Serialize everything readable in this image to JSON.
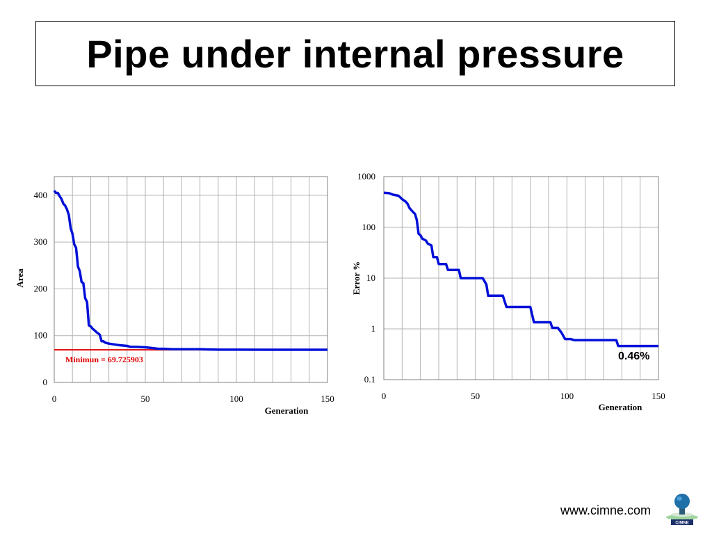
{
  "slide": {
    "title": "Pipe under internal pressure",
    "footer_url": "www.cimne.com",
    "logo_text": "CIMNE"
  },
  "colors": {
    "series": "#0010d8",
    "minimum_line": "#e00000",
    "grid": "#b3b3b3"
  },
  "chart_data": [
    {
      "type": "line",
      "xlabel": "Generation",
      "ylabel": "Area",
      "xlim": [
        0,
        150
      ],
      "ylim": [
        0,
        440
      ],
      "xticks": [
        0,
        50,
        100,
        150
      ],
      "yticks": [
        0,
        100,
        200,
        300,
        400
      ],
      "x_gridlines": [
        10,
        20,
        30,
        40,
        50,
        60,
        70,
        80,
        90,
        100,
        110,
        120,
        130,
        140
      ],
      "y_gridlines": [
        0,
        100,
        200,
        300,
        400
      ],
      "series": [
        {
          "x": [
            0,
            1,
            2,
            3,
            4,
            5,
            6,
            7,
            8,
            9,
            10,
            11,
            12,
            13,
            14,
            15,
            16,
            17,
            18,
            19,
            20,
            21,
            22,
            23,
            24,
            25,
            26,
            27,
            28,
            30,
            35,
            40,
            42,
            45,
            50,
            55,
            57,
            60,
            65,
            70,
            80,
            85,
            90,
            100,
            120,
            150
          ],
          "y": [
            410,
            405,
            405,
            398,
            392,
            382,
            378,
            370,
            358,
            330,
            318,
            295,
            288,
            248,
            238,
            215,
            212,
            180,
            172,
            122,
            120,
            115,
            112,
            108,
            105,
            102,
            88,
            88,
            85,
            83,
            80,
            78,
            76,
            76,
            75,
            73,
            72,
            72,
            71,
            71,
            71,
            70.5,
            70,
            70,
            69.8,
            69.8
          ]
        }
      ],
      "reference_line": {
        "y": 69.725903,
        "label": "Minimun = 69.725903"
      }
    },
    {
      "type": "line",
      "xlabel": "Generation",
      "ylabel": "Error %",
      "yscale": "log",
      "xlim": [
        0,
        150
      ],
      "ylim": [
        0.1,
        1000
      ],
      "xticks": [
        0,
        50,
        100,
        150
      ],
      "yticks": [
        "0.1",
        "1",
        "10",
        "100",
        "1000"
      ],
      "x_gridlines": [
        10,
        20,
        30,
        40,
        50,
        60,
        70,
        80,
        90,
        100,
        110,
        120,
        130,
        140
      ],
      "series": [
        {
          "x": [
            0,
            3,
            5,
            8,
            9,
            10,
            12,
            13,
            14,
            16,
            17,
            18,
            19,
            20,
            21,
            23,
            24,
            26,
            27,
            29,
            30,
            34,
            35,
            41,
            42,
            54,
            56,
            57,
            65,
            67,
            80,
            82,
            91,
            92,
            95,
            97,
            99,
            102,
            104,
            127,
            128,
            150
          ],
          "y": [
            480,
            470,
            440,
            420,
            390,
            360,
            320,
            290,
            240,
            200,
            185,
            140,
            75,
            70,
            60,
            55,
            48,
            44,
            26,
            26,
            19,
            19,
            14.5,
            14.5,
            10,
            10,
            7.5,
            4.5,
            4.5,
            2.7,
            2.7,
            1.35,
            1.35,
            1.05,
            1.05,
            0.85,
            0.63,
            0.63,
            0.6,
            0.6,
            0.46,
            0.46
          ]
        }
      ],
      "annotation": "0.46%"
    }
  ]
}
